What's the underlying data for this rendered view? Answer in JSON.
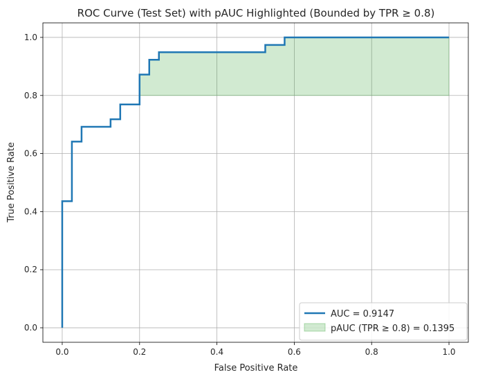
{
  "chart_data": {
    "type": "line",
    "title": "ROC Curve (Test Set) with pAUC Highlighted (Bounded by TPR ≥ 0.8)",
    "xlabel": "False Positive Rate",
    "ylabel": "True Positive Rate",
    "xlim": [
      -0.05,
      1.05
    ],
    "ylim": [
      -0.05,
      1.05
    ],
    "xticks": [
      0.0,
      0.2,
      0.4,
      0.6,
      0.8,
      1.0
    ],
    "yticks": [
      0.0,
      0.2,
      0.4,
      0.6,
      0.8,
      1.0
    ],
    "xtick_labels": [
      "0.0",
      "0.2",
      "0.4",
      "0.6",
      "0.8",
      "1.0"
    ],
    "ytick_labels": [
      "0.0",
      "0.2",
      "0.4",
      "0.6",
      "0.8",
      "1.0"
    ],
    "grid": true,
    "legend_position": "lower-right",
    "series": [
      {
        "name": "AUC = 0.9147",
        "color": "#1f77b4",
        "x": [
          0.0,
          0.0,
          0.0,
          0.025,
          0.025,
          0.05,
          0.05,
          0.125,
          0.125,
          0.15,
          0.15,
          0.2,
          0.2,
          0.225,
          0.225,
          0.25,
          0.25,
          0.525,
          0.525,
          0.575,
          0.575,
          1.0
        ],
        "y": [
          0.0,
          0.436,
          0.436,
          0.436,
          0.641,
          0.641,
          0.692,
          0.692,
          0.718,
          0.718,
          0.769,
          0.769,
          0.872,
          0.872,
          0.923,
          0.923,
          0.949,
          0.949,
          0.974,
          0.974,
          1.0,
          1.0
        ]
      }
    ],
    "shaded_region": {
      "name": "pAUC (TPR ≥ 0.8) = 0.1395",
      "color": "#2ca02c",
      "opacity": 0.22,
      "lower_y": 0.8,
      "x_range": [
        0.2,
        1.0
      ]
    }
  }
}
